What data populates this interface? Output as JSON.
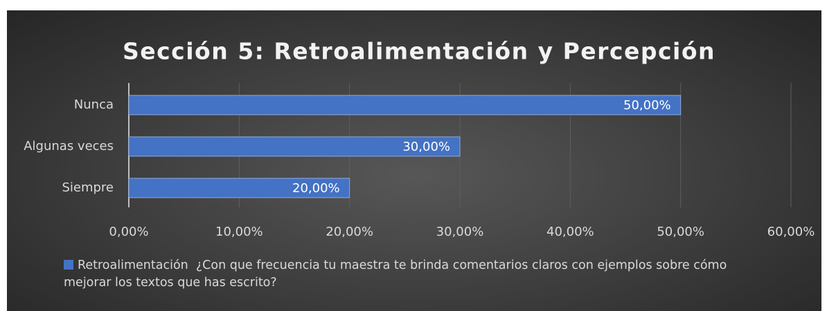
{
  "chart_data": {
    "type": "hbar",
    "title": "Sección 5: Retroalimentación y Percepción",
    "categories": [
      "Nunca",
      "Algunas veces",
      "Siempre"
    ],
    "series": [
      {
        "name": "Retroalimentación  ¿Con que frecuencia tu maestra te brinda comentarios claros con ejemplos sobre cómo mejorar los textos que has escrito?",
        "color": "#4472c4",
        "values": [
          50,
          30,
          20
        ],
        "value_labels": [
          "50,00%",
          "30,00%",
          "20,00%"
        ]
      }
    ],
    "xlim": [
      0,
      60
    ],
    "xticks": [
      {
        "value": 0,
        "label": "0,00%"
      },
      {
        "value": 10,
        "label": "10,00%"
      },
      {
        "value": 20,
        "label": "20,00%"
      },
      {
        "value": 30,
        "label": "30,00%"
      },
      {
        "value": 40,
        "label": "40,00%"
      },
      {
        "value": 50,
        "label": "50,00%"
      },
      {
        "value": 60,
        "label": "60,00%"
      }
    ],
    "grid": true,
    "legend": "bottom-left"
  }
}
